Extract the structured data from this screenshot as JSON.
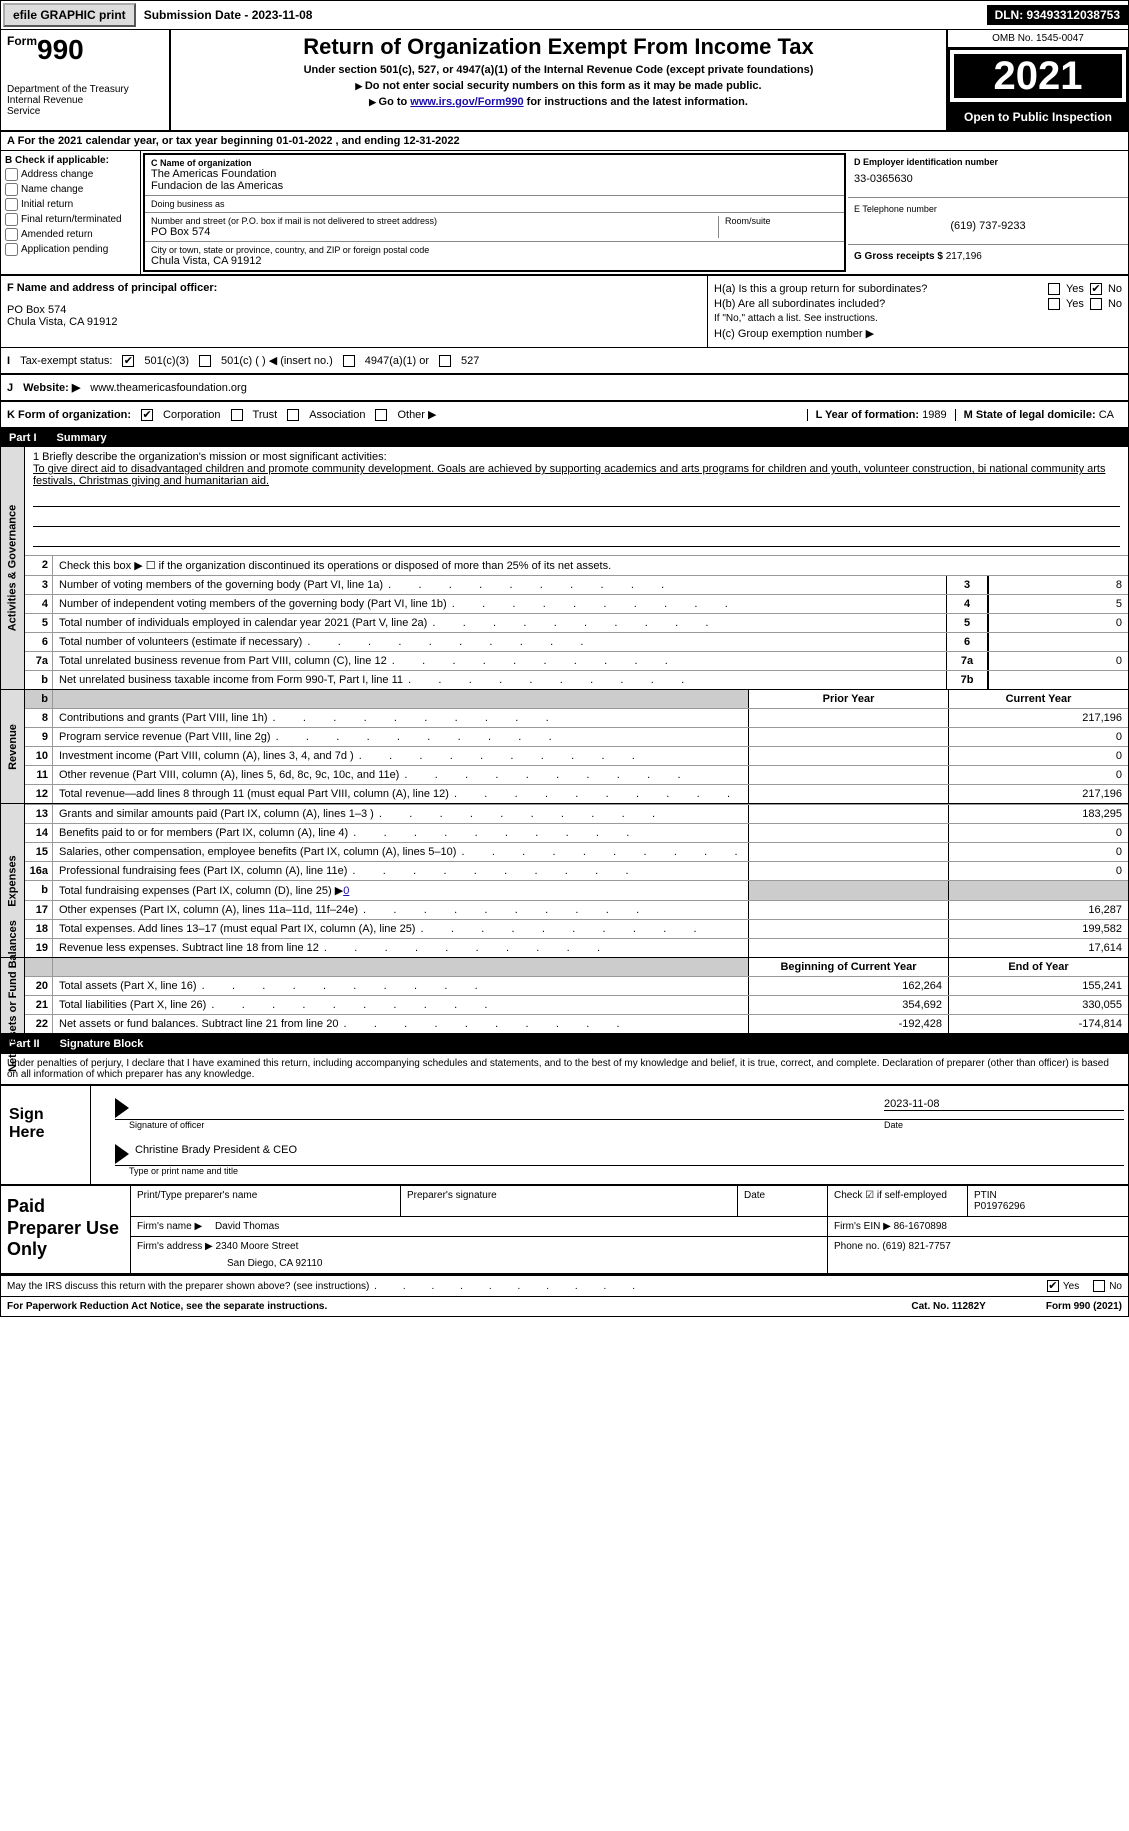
{
  "topbar": {
    "efile": "efile GRAPHIC print",
    "submission": "Submission Date - 2023-11-08",
    "dln": "DLN: 93493312038753"
  },
  "header": {
    "form_prefix": "Form",
    "form_num": "990",
    "dept": "Department of the Treasury\nInternal Revenue\nService",
    "title": "Return of Organization Exempt From Income Tax",
    "sub1": "Under section 501(c), 527, or 4947(a)(1) of the Internal Revenue Code (except private foundations)",
    "sub2": "Do not enter social security numbers on this form as it may be made public.",
    "sub3_pre": "Go to ",
    "sub3_link": "www.irs.gov/Form990",
    "sub3_post": " for instructions and the latest information.",
    "omb": "OMB No. 1545-0047",
    "year": "2021",
    "open_public": "Open to Public Inspection"
  },
  "rowA": "For the 2021 calendar year, or tax year beginning 01-01-2022   , and ending 12-31-2022",
  "rowA_prefix": "A",
  "secB": {
    "title": "B Check if applicable:",
    "opts": [
      "Address change",
      "Name change",
      "Initial return",
      "Final return/terminated",
      "Amended return",
      "Application pending"
    ]
  },
  "secC": {
    "name_label": "C Name of organization",
    "org1": "The Americas Foundation",
    "org2": "Fundacion de las Americas",
    "dba_label": "Doing business as",
    "dba": "",
    "addr_label": "Number and street (or P.O. box if mail is not delivered to street address)",
    "room_label": "Room/suite",
    "addr": "PO Box 574",
    "city_label": "City or town, state or province, country, and ZIP or foreign postal code",
    "city": "Chula Vista, CA  91912"
  },
  "secD": {
    "ein_label": "D Employer identification number",
    "ein": "33-0365630",
    "tel_label": "E Telephone number",
    "tel": "(619) 737-9233",
    "gross_label": "G Gross receipts $",
    "gross": "217,196"
  },
  "secF": {
    "label": "F  Name and address of principal officer:",
    "line1": "PO Box 574",
    "line2": "Chula Vista, CA  91912"
  },
  "secH": {
    "ha": "H(a)  Is this a group return for subordinates?",
    "hb": "H(b)  Are all subordinates included?",
    "hb_note": "If \"No,\" attach a list. See instructions.",
    "hc": "H(c)  Group exemption number ▶",
    "yes": "Yes",
    "no": "No"
  },
  "taxExempt": {
    "label": "Tax-exempt status:",
    "o1": "501(c)(3)",
    "o2": "501(c) (   ) ◀ (insert no.)",
    "o3": "4947(a)(1) or",
    "o4": "527"
  },
  "rowJ": {
    "label": "Website: ▶",
    "url": "www.theamericasfoundation.org"
  },
  "rowK": {
    "label": "K Form of organization:",
    "opts": [
      "Corporation",
      "Trust",
      "Association",
      "Other ▶"
    ],
    "l_label": "L Year of formation:",
    "l_val": "1989",
    "m_label": "M State of legal domicile:",
    "m_val": "CA"
  },
  "part1": {
    "num": "Part I",
    "title": "Summary"
  },
  "summary": {
    "l1_pre": "1  Briefly describe the organization's mission or most significant activities:",
    "l1_text": "To give direct aid to disadvantaged children and promote community development. Goals are achieved by supporting academics and arts programs for children and youth, volunteer construction, bi national community arts festivals, Christmas giving and humanitarian aid.",
    "l2": "Check this box ▶ ☐ if the organization discontinued its operations or disposed of more than 25% of its net assets.",
    "sideA": "Activities & Governance",
    "sideR": "Revenue",
    "sideE": "Expenses",
    "sideN": "Net Assets or Fund Balances",
    "prior_hdr": "Prior Year",
    "curr_hdr": "Current Year",
    "begin_hdr": "Beginning of Current Year",
    "end_hdr": "End of Year",
    "lines_top": [
      {
        "n": "3",
        "d": "Number of voting members of the governing body (Part VI, line 1a)",
        "box": "3",
        "v": "8"
      },
      {
        "n": "4",
        "d": "Number of independent voting members of the governing body (Part VI, line 1b)",
        "box": "4",
        "v": "5"
      },
      {
        "n": "5",
        "d": "Total number of individuals employed in calendar year 2021 (Part V, line 2a)",
        "box": "5",
        "v": "0"
      },
      {
        "n": "6",
        "d": "Total number of volunteers (estimate if necessary)",
        "box": "6",
        "v": ""
      },
      {
        "n": "7a",
        "d": "Total unrelated business revenue from Part VIII, column (C), line 12",
        "box": "7a",
        "v": "0"
      },
      {
        "n": " b",
        "d": "Net unrelated business taxable income from Form 990-T, Part I, line 11",
        "box": "7b",
        "v": ""
      }
    ],
    "revenue": [
      {
        "n": "8",
        "d": "Contributions and grants (Part VIII, line 1h)",
        "p": "",
        "c": "217,196"
      },
      {
        "n": "9",
        "d": "Program service revenue (Part VIII, line 2g)",
        "p": "",
        "c": "0"
      },
      {
        "n": "10",
        "d": "Investment income (Part VIII, column (A), lines 3, 4, and 7d )",
        "p": "",
        "c": "0"
      },
      {
        "n": "11",
        "d": "Other revenue (Part VIII, column (A), lines 5, 6d, 8c, 9c, 10c, and 11e)",
        "p": "",
        "c": "0"
      },
      {
        "n": "12",
        "d": "Total revenue—add lines 8 through 11 (must equal Part VIII, column (A), line 12)",
        "p": "",
        "c": "217,196"
      }
    ],
    "expenses": [
      {
        "n": "13",
        "d": "Grants and similar amounts paid (Part IX, column (A), lines 1–3 )",
        "p": "",
        "c": "183,295"
      },
      {
        "n": "14",
        "d": "Benefits paid to or for members (Part IX, column (A), line 4)",
        "p": "",
        "c": "0"
      },
      {
        "n": "15",
        "d": "Salaries, other compensation, employee benefits (Part IX, column (A), lines 5–10)",
        "p": "",
        "c": "0"
      },
      {
        "n": "16a",
        "d": "Professional fundraising fees (Part IX, column (A), line 11e)",
        "p": "",
        "c": "0"
      },
      {
        "n": "b",
        "d": "Total fundraising expenses (Part IX, column (D), line 25) ▶",
        "p": "SHADE",
        "c": "SHADE",
        "link": "0"
      },
      {
        "n": "17",
        "d": "Other expenses (Part IX, column (A), lines 11a–11d, 11f–24e)",
        "p": "",
        "c": "16,287"
      },
      {
        "n": "18",
        "d": "Total expenses. Add lines 13–17 (must equal Part IX, column (A), line 25)",
        "p": "",
        "c": "199,582"
      },
      {
        "n": "19",
        "d": "Revenue less expenses. Subtract line 18 from line 12",
        "p": "",
        "c": "17,614"
      }
    ],
    "net": [
      {
        "n": "20",
        "d": "Total assets (Part X, line 16)",
        "p": "162,264",
        "c": "155,241"
      },
      {
        "n": "21",
        "d": "Total liabilities (Part X, line 26)",
        "p": "354,692",
        "c": "330,055"
      },
      {
        "n": "22",
        "d": "Net assets or fund balances. Subtract line 21 from line 20",
        "p": "-192,428",
        "c": "-174,814"
      }
    ]
  },
  "part2": {
    "num": "Part II",
    "title": "Signature Block"
  },
  "penalties": "Under penalties of perjury, I declare that I have examined this return, including accompanying schedules and statements, and to the best of my knowledge and belief, it is true, correct, and complete. Declaration of preparer (other than officer) is based on all information of which preparer has any knowledge.",
  "sign": {
    "here": "Sign Here",
    "sig_of_officer": "Signature of officer",
    "date_label": "Date",
    "date": "2023-11-08",
    "name": "Christine Brady  President & CEO",
    "name_label": "Type or print name and title"
  },
  "preparer": {
    "title": "Paid Preparer Use Only",
    "r1": {
      "c1": "Print/Type preparer's name",
      "c2": "Preparer's signature",
      "c3": "Date",
      "c4": "Check ☑ if self-employed",
      "c5l": "PTIN",
      "c5v": "P01976296"
    },
    "r2": {
      "firm_l": "Firm's name  ▶",
      "firm": "David Thomas",
      "ein_l": "Firm's EIN ▶",
      "ein": "86-1670898"
    },
    "r3": {
      "addr_l": "Firm's address ▶",
      "addr1": "2340 Moore Street",
      "addr2": "San Diego, CA  92110",
      "ph_l": "Phone no.",
      "ph": "(619) 821-7757"
    }
  },
  "footer": {
    "discuss": "May the IRS discuss this return with the preparer shown above? (see instructions)",
    "yes": "Yes",
    "no": "No",
    "pra": "For Paperwork Reduction Act Notice, see the separate instructions.",
    "cat": "Cat. No. 11282Y",
    "form": "Form 990 (2021)"
  }
}
